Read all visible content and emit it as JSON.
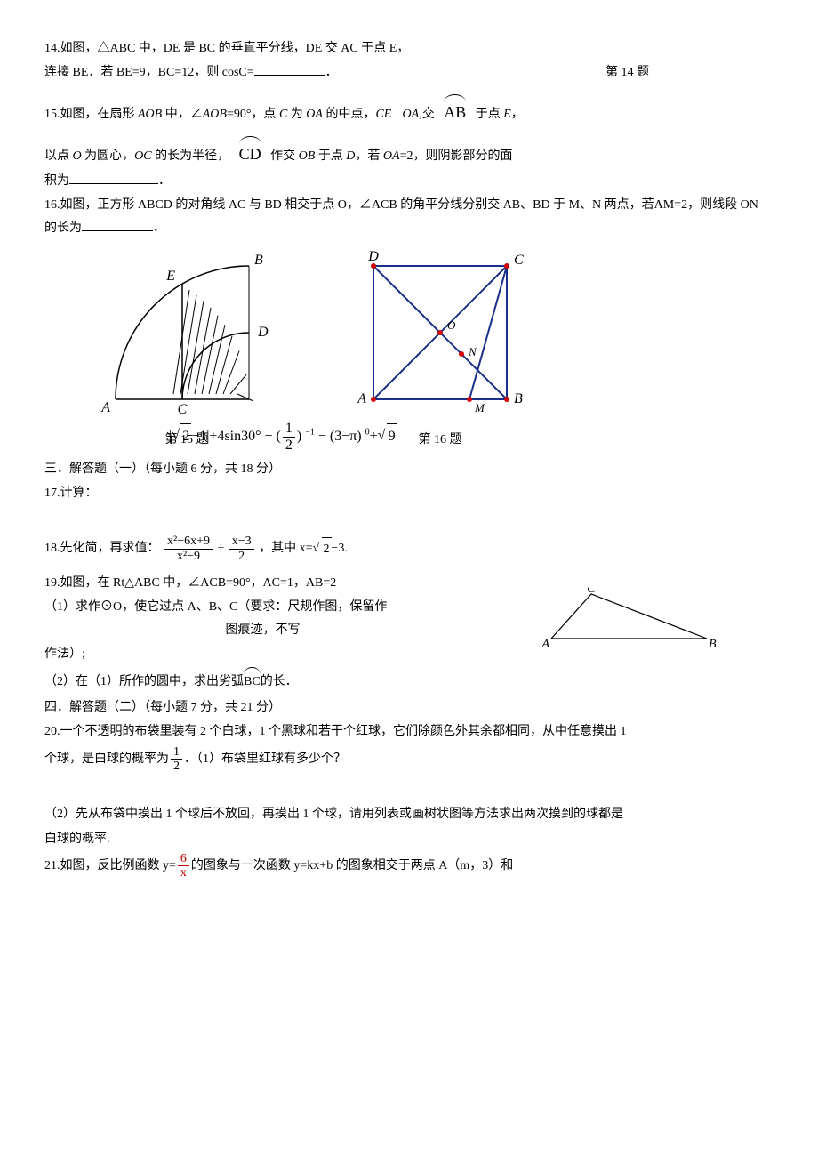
{
  "q14": {
    "text": "14.如图，△ABC 中，DE 是 BC 的垂直平分线，DE 交 AC 于点 E，",
    "text2": "连接 BE．若 BE=9，BC=12，则 cosC=",
    "label": "第 14 题"
  },
  "q15": {
    "pre": " 15.如图，在扇形 ",
    "aob": "AOB",
    "mid1": " 中，∠",
    "mid1b": "AOB",
    "mid2": "=90°，点 ",
    "c": "C",
    "mid3": " 为 ",
    "oa": "OA",
    "mid4": " 的中点，",
    "ce": "CE",
    "perp": "⊥",
    "oa2": "OA",
    "mid5": ",交",
    "arcAB": "AB",
    "mid6": "于点 ",
    "e": "E",
    "mid7": "，",
    "line2a": "以点 ",
    "o": "O",
    "line2b": " 为圆心，",
    "oc": "OC",
    "line2c": " 的长为半径，",
    "arcCD": "CD",
    "line2d": "作交 ",
    "ob": "OB",
    "line2e": " 于点 ",
    "d": "D",
    "line2f": "，若 ",
    "oa3": "OA",
    "line2g": "=2，则阴影部分的面",
    "line3": "积为",
    "caption": "第 15 题"
  },
  "q16": {
    "text": "16.如图，正方形 ABCD 的对角线 AC 与 BD 相交于点 O，∠ACB 的角平分线分别交 AB、BD 于 M、N 两点，若AM=2，则线段 ON 的长为",
    "caption": "第 16 题"
  },
  "eq": {
    "part1": "|",
    "sqrt2": "2",
    "part2": "−1|+4sin30° − (",
    "half_num": "1",
    "half_den": "2",
    "part3": ") ",
    "exp_neg1": "−1",
    "part4": " − (3−π) ",
    "exp0": "0",
    "part5": "+",
    "sqrt9": "9"
  },
  "section3": "三．解答题（一）（每小题 6 分，共 18 分）",
  "q17": "17.计算：",
  "q18": {
    "pre": "18.先化简，再求值：",
    "f1_num": "x²−6x+9",
    "f1_den": "x²−9",
    "div": "÷",
    "f2_num": "x−3",
    "f2_den": "2",
    "mid": "，其中 x=",
    "sqrt2": "2",
    "tail": "−3."
  },
  "q19": {
    "l1": "19.如图，在 Rt△ABC 中，∠ACB=90°，AC=1，AB=2",
    "l2a": "（1）求作⊙O，使它过点 A、B、C（要求：尺规作图，保留作",
    "l2b": "图痕迹，不写",
    "l2c": "作法）;",
    "l3a": "（2）在（1）所作的圆中，求出劣弧",
    "arcBC": "BC",
    "l3b": "的长．"
  },
  "section4": "四．解答题（二）（每小题 7 分，共 21 分）",
  "q20": {
    "l1": "20.一个不透明的布袋里装有 2 个白球，1 个黑球和若干个红球，它们除颜色外其余都相同，从中任意摸出 1",
    "l2a": "个球，是白球的概率为",
    "half_num": "1",
    "half_den": "2",
    "l2b": "．（1）布袋里红球有多少个？",
    "l3": "（2）先从布袋中摸出 1 个球后不放回，再摸出 1 个球，请用列表或画树状图等方法求出两次摸到的球都是",
    "l4": "白球的概率."
  },
  "q21": {
    "pre": "21.如图，反比例函数 ",
    "yeq": "y=",
    "num": "6",
    "den": "x",
    "tail": "的图象与一次函数 y=kx+b 的图象相交于两点 A（m，3）和"
  },
  "fig15": {
    "stroke": "#000000",
    "hatch": "#000000",
    "labels": {
      "A": "A",
      "B": "B",
      "C": "C",
      "D": "D",
      "E": "E"
    }
  },
  "fig16": {
    "stroke": "#1a2f8a",
    "dot": "#d00000",
    "labels": {
      "A": "A",
      "B": "B",
      "C": "C",
      "D": "D",
      "O": "O",
      "M": "M",
      "N": "N"
    }
  },
  "fig19": {
    "stroke": "#000000",
    "labels": {
      "A": "A",
      "B": "B",
      "C": "C"
    }
  }
}
